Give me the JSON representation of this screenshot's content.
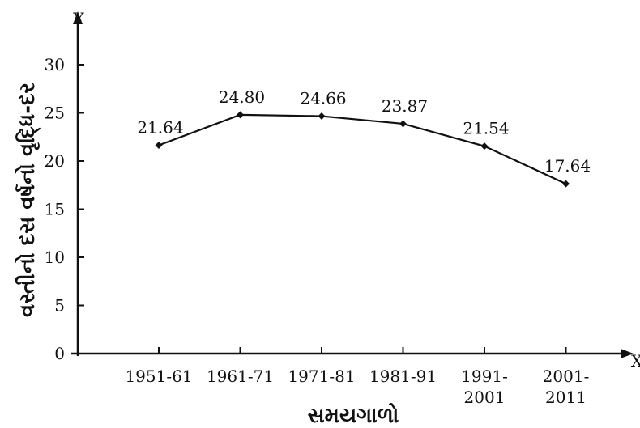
{
  "chart_data": {
    "type": "line",
    "title": "",
    "xlabel": "સમયગાળો",
    "ylabel": "વસ્તીનો દસ વર્ષનો વૃદ્ધિ-દર",
    "x_axis_letter": "X",
    "y_axis_letter": "Y",
    "categories": [
      [
        "1951-61"
      ],
      [
        "1961-71"
      ],
      [
        "1971-81"
      ],
      [
        "1981-91"
      ],
      [
        "1991-",
        "2001"
      ],
      [
        "2001-",
        "2011"
      ]
    ],
    "values": [
      21.64,
      24.8,
      24.66,
      23.87,
      21.54,
      17.64
    ],
    "data_labels": [
      "21.64",
      "24.80",
      "24.66",
      "23.87",
      "21.54",
      "17.64"
    ],
    "yticks": [
      "0",
      "5",
      "10",
      "15",
      "20",
      "25",
      "30"
    ],
    "ylim": [
      0,
      30
    ],
    "grid": false,
    "marker": "diamond",
    "line_color": "#111111"
  }
}
